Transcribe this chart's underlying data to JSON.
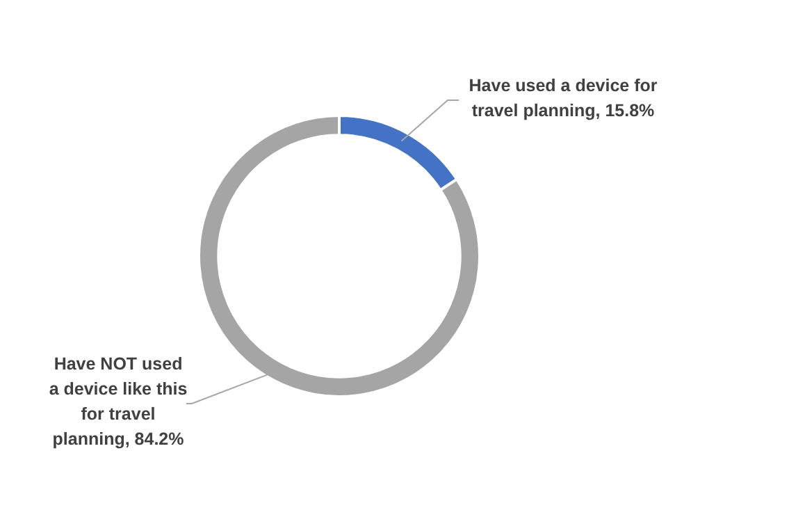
{
  "chart_data": {
    "type": "donut",
    "categories": [
      "Have used a device for travel planning",
      "Have NOT used a device like this for travel planning"
    ],
    "values": [
      15.8,
      84.2
    ],
    "colors": [
      "#4472c4",
      "#a5a5a5"
    ],
    "value_labels": [
      "15.8%",
      "84.2%"
    ],
    "legend": false
  }
}
